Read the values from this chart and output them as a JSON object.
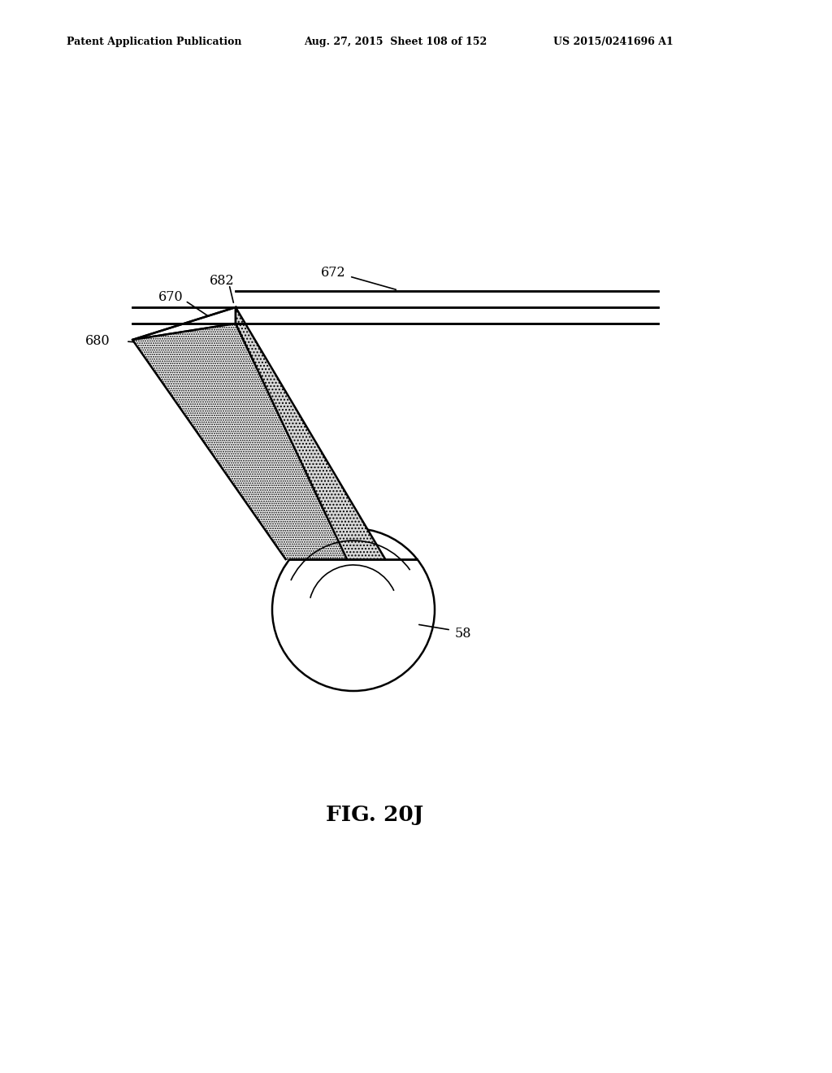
{
  "title": "FIG. 20J",
  "header_left": "Patent Application Publication",
  "header_mid": "Aug. 27, 2015  Sheet 108 of 152",
  "header_right": "US 2015/0241696 A1",
  "bg_color": "#ffffff",
  "line_color": "#000000",
  "label_680": "680",
  "label_670": "670",
  "label_682": "682",
  "label_672": "672",
  "label_58": "58"
}
